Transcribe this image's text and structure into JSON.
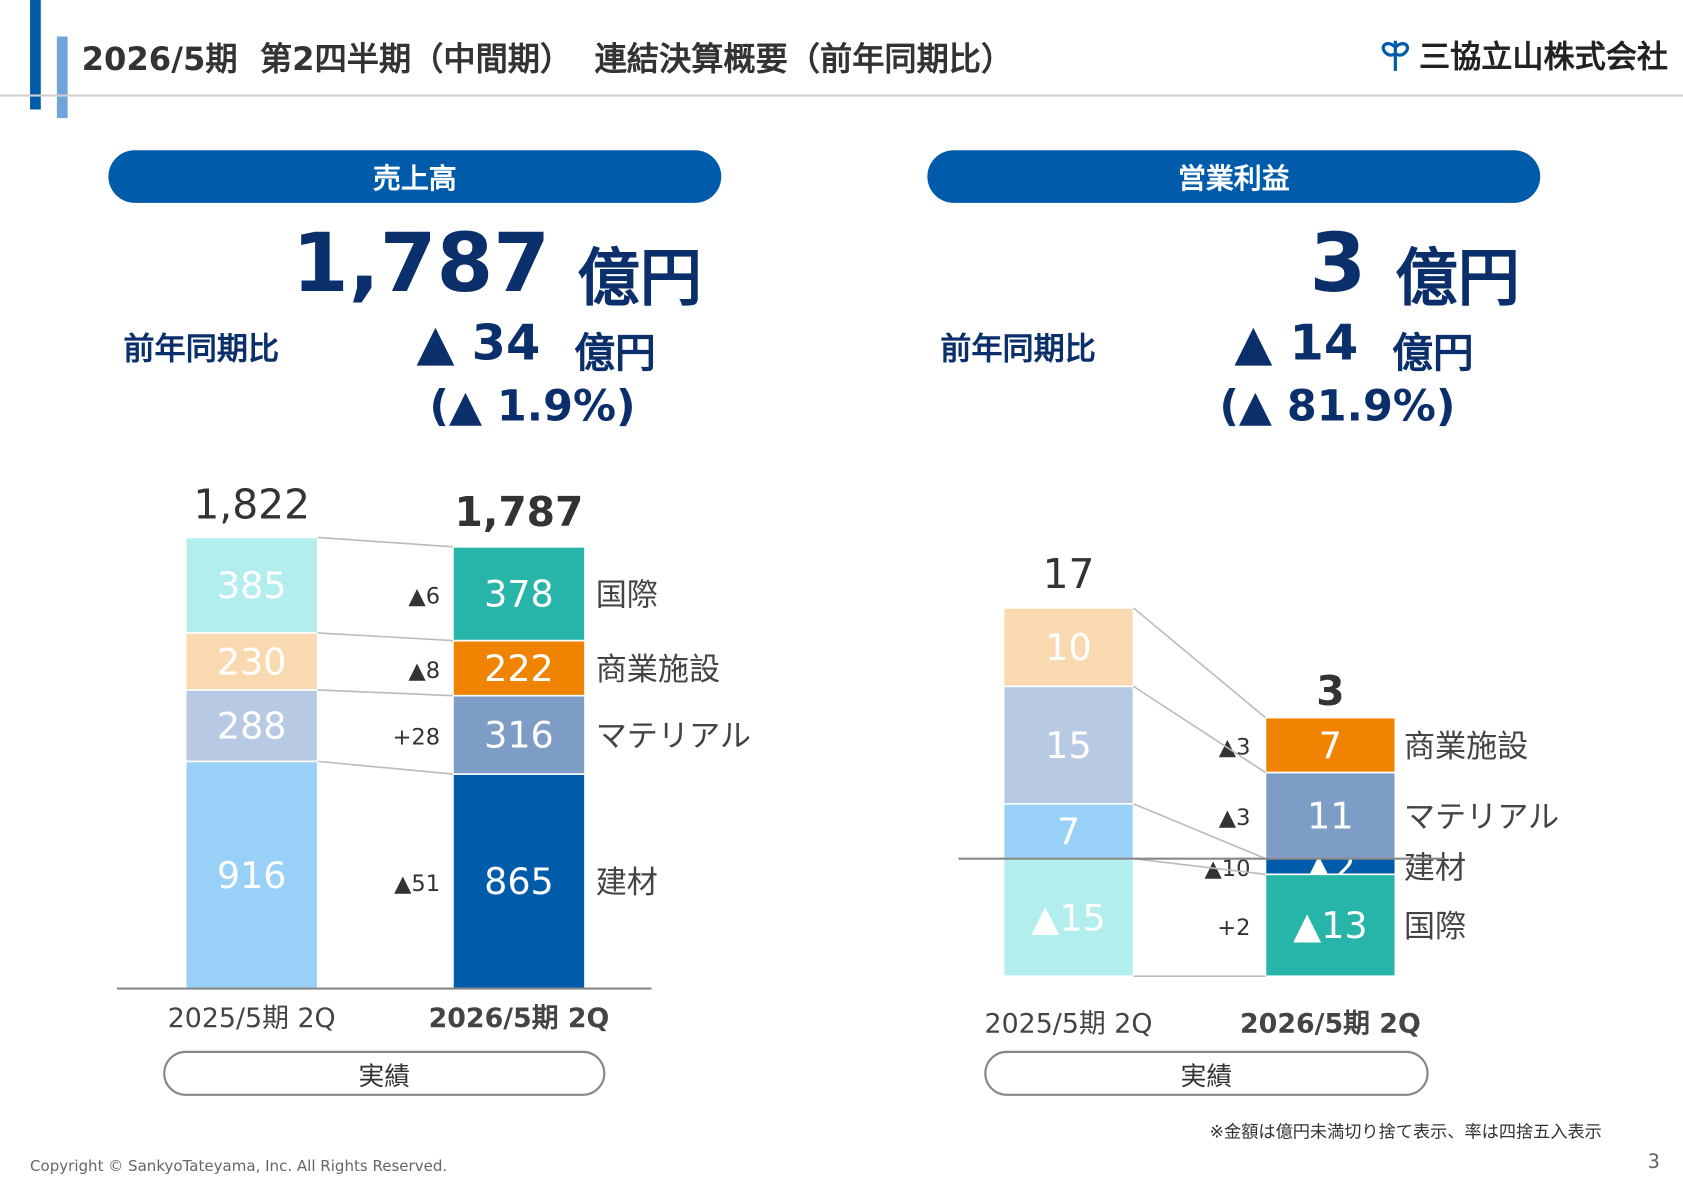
{
  "header": {
    "title": "2026/5期  第2四半期（中間期）  連結決算概要（前年同期比）",
    "company": "三協立山株式会社"
  },
  "sales": {
    "heading": "売上高",
    "value": "1,787",
    "unit": "億円",
    "yoy_label": "前年同期比",
    "yoy_value": "▲ 34",
    "yoy_unit": "億円",
    "yoy_pct": "(▲ 1.9%)"
  },
  "op_income": {
    "heading": "営業利益",
    "value": "3",
    "unit": "億円",
    "yoy_label": "前年同期比",
    "yoy_value": "▲ 14",
    "yoy_unit": "億円",
    "yoy_pct": "(▲ 81.9%)"
  },
  "colors": {
    "brand": "#005bab"
  },
  "chart_data": [
    {
      "type": "bar",
      "stacked": true,
      "categories": [
        "2025/5期  2Q",
        "2026/5期  2Q"
      ],
      "totals": [
        "1,822",
        "1,787"
      ],
      "caption": "実績",
      "series": [
        {
          "name": "建材",
          "values": [
            916,
            865
          ],
          "labels": [
            "916",
            "865"
          ],
          "delta": "▲51",
          "colors": [
            "#99d0f8",
            "#005bab"
          ]
        },
        {
          "name": "マテリアル",
          "values": [
            288,
            316
          ],
          "labels": [
            "288",
            "316"
          ],
          "delta": "+28",
          "colors": [
            "#b8cae3",
            "#7d9cc6"
          ]
        },
        {
          "name": "商業施設",
          "values": [
            230,
            222
          ],
          "labels": [
            "230",
            "222"
          ],
          "delta": "▲8",
          "colors": [
            "#f9d9b0",
            "#f08300"
          ]
        },
        {
          "name": "国際",
          "values": [
            385,
            378
          ],
          "labels": [
            "385",
            "378"
          ],
          "delta": "▲6",
          "colors": [
            "#b2eeee",
            "#26b5a8"
          ]
        }
      ]
    },
    {
      "type": "bar",
      "stacked": true,
      "categories": [
        "2025/5期  2Q",
        "2026/5期  2Q"
      ],
      "totals": [
        "17",
        "3"
      ],
      "caption": "実績",
      "series": [
        {
          "name": "建材",
          "values": [
            7,
            -2
          ],
          "labels": [
            "7",
            "▲2"
          ],
          "delta": "▲10",
          "colors": [
            "#99d0f8",
            "#005bab"
          ]
        },
        {
          "name": "マテリアル",
          "values": [
            15,
            11
          ],
          "labels": [
            "15",
            "11"
          ],
          "delta": "▲3",
          "colors": [
            "#b8cae3",
            "#7d9cc6"
          ]
        },
        {
          "name": "商業施設",
          "values": [
            10,
            7
          ],
          "labels": [
            "10",
            "7"
          ],
          "delta": "▲3",
          "colors": [
            "#f9d9b0",
            "#f08300"
          ]
        },
        {
          "name": "国際",
          "values": [
            -15,
            -13
          ],
          "labels": [
            "▲15",
            "▲13"
          ],
          "delta": "+2",
          "colors": [
            "#b2eeee",
            "#26b5a8"
          ]
        }
      ]
    }
  ],
  "footer": {
    "note": "※金額は億円未満切り捨て表示、率は四捨五入表示",
    "copyright": "Copyright © SankyoTateyama, Inc. All Rights Reserved.",
    "page": "3"
  }
}
